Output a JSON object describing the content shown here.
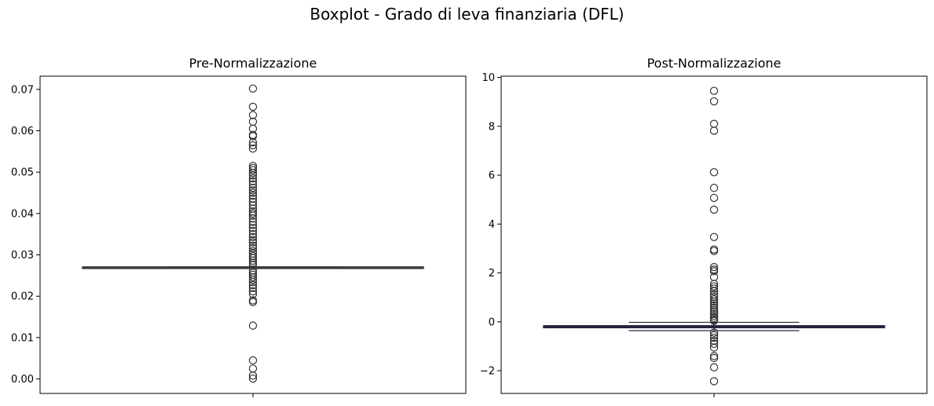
{
  "figure": {
    "suptitle": "Boxplot - Grado di leva finanziaria (DFL)"
  },
  "chart_data": [
    {
      "type": "box",
      "title": "Pre-Normalizzazione",
      "xlabel": "",
      "ylabel": "",
      "ylim": [
        -0.0035,
        0.0732
      ],
      "yticks": [
        0.0,
        0.01,
        0.02,
        0.03,
        0.04,
        0.05,
        0.06,
        0.07
      ],
      "ytick_labels": [
        "0.00",
        "0.01",
        "0.02",
        "0.03",
        "0.04",
        "0.05",
        "0.06",
        "0.07"
      ],
      "box": {
        "q1": 0.0268,
        "median": 0.0269,
        "q3": 0.027,
        "whisker_low": 0.0267,
        "whisker_high": 0.0271
      },
      "outliers": [
        0.0702,
        0.0658,
        0.0638,
        0.0622,
        0.0605,
        0.059,
        0.0587,
        0.0572,
        0.0565,
        0.0557,
        0.0515,
        0.051,
        0.0505,
        0.0498,
        0.0492,
        0.0485,
        0.0478,
        0.047,
        0.0462,
        0.0456,
        0.045,
        0.0443,
        0.0436,
        0.0428,
        0.042,
        0.0412,
        0.0405,
        0.04,
        0.0395,
        0.0388,
        0.038,
        0.0372,
        0.0365,
        0.0358,
        0.035,
        0.0343,
        0.0336,
        0.033,
        0.0322,
        0.0316,
        0.0309,
        0.0303,
        0.0297,
        0.0292,
        0.0286,
        0.0281,
        0.0276,
        0.0262,
        0.0257,
        0.0252,
        0.0246,
        0.024,
        0.0234,
        0.0227,
        0.022,
        0.0212,
        0.0205,
        0.019,
        0.0186,
        0.0129,
        0.0045,
        0.0025,
        0.0008,
        0.0001
      ],
      "color": "#3a3a3a"
    },
    {
      "type": "box",
      "title": "Post-Normalizzazione",
      "xlabel": "",
      "ylabel": "",
      "ylim": [
        -2.93,
        10.05
      ],
      "yticks": [
        -2,
        0,
        2,
        4,
        6,
        8,
        10
      ],
      "ytick_labels": [
        "−2",
        "0",
        "2",
        "4",
        "6",
        "8",
        "10"
      ],
      "box": {
        "q1": -0.24,
        "median": -0.2,
        "q3": -0.16,
        "whisker_low": -0.36,
        "whisker_high": -0.02
      },
      "outliers": [
        9.45,
        9.02,
        8.1,
        7.82,
        6.12,
        5.48,
        5.07,
        4.59,
        3.47,
        2.96,
        2.9,
        2.24,
        2.14,
        2.07,
        1.83,
        1.55,
        1.45,
        1.36,
        1.25,
        1.12,
        1.02,
        0.92,
        0.83,
        0.75,
        0.67,
        0.58,
        0.48,
        0.4,
        0.32,
        0.24,
        0.16,
        0.08,
        0.04,
        -0.44,
        -0.55,
        -0.65,
        -0.78,
        -0.9,
        -1.05,
        -1.4,
        -1.48,
        -1.86,
        -2.43
      ],
      "color": "#25253d"
    }
  ]
}
